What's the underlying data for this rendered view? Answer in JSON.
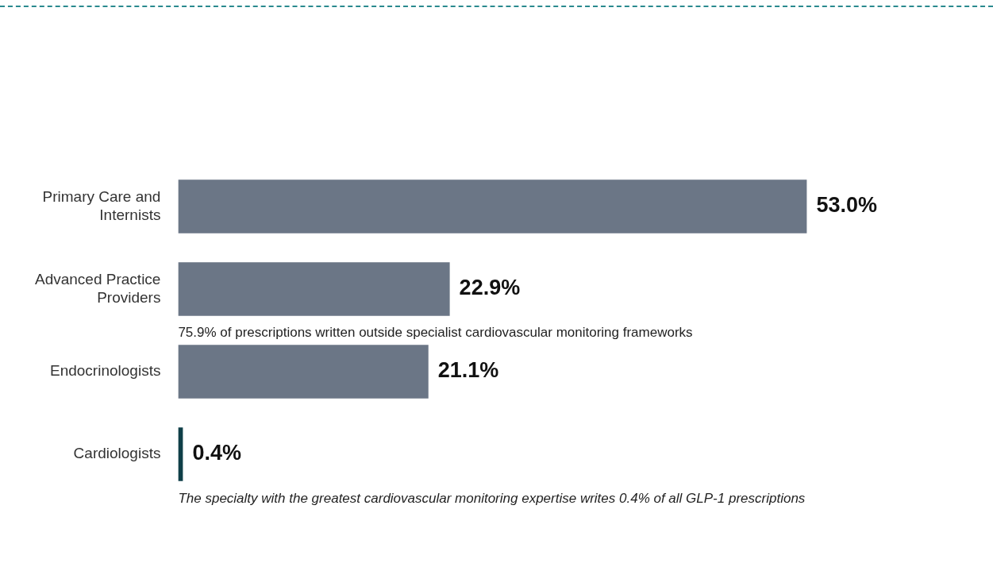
{
  "chart_data": {
    "type": "bar",
    "orientation": "horizontal",
    "categories": [
      "Primary Care and Internists",
      "Advanced Practice Providers",
      "Endocrinologists",
      "Cardiologists"
    ],
    "values": [
      53.0,
      22.9,
      21.1,
      0.4
    ],
    "colors": [
      "#6b7686",
      "#6b7686",
      "#6b7686",
      "#0f3f48"
    ],
    "value_labels": [
      "53.0%",
      "22.9%",
      "21.1%",
      "0.4%"
    ],
    "tick_labels": "y",
    "annotations": [
      "75.9% of prescriptions written outside specialist cardiovascular monitoring frameworks",
      "The specialty with the greatest cardiovascular monitoring expertise writes 0.4% of all GLP-1 prescriptions"
    ]
  }
}
